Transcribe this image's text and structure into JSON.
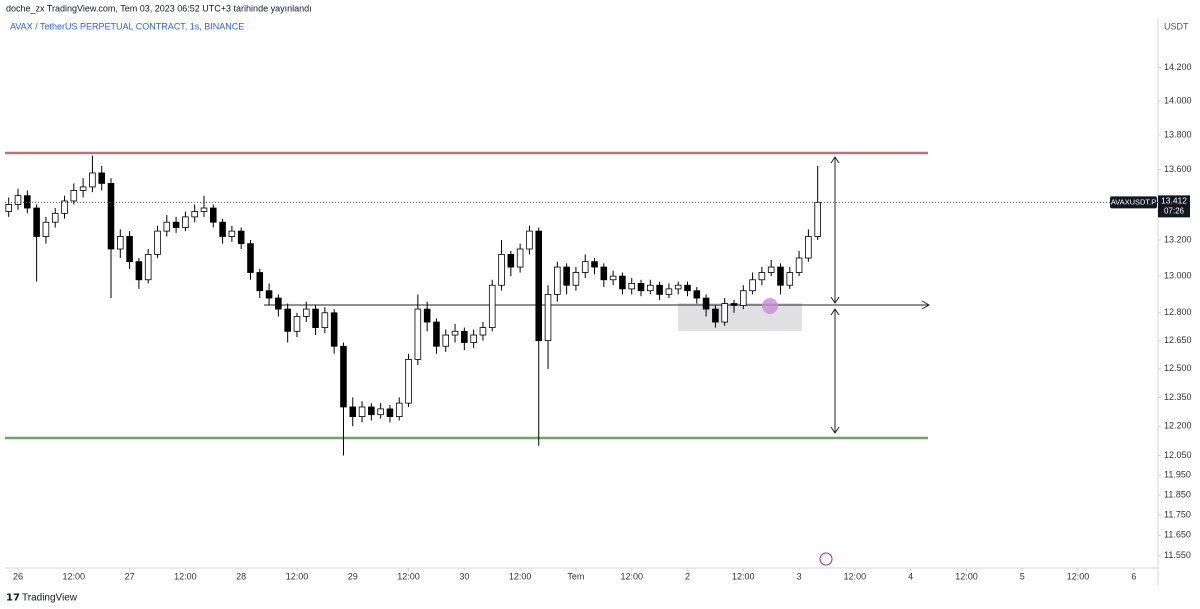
{
  "chart_data": {
    "type": "candlestick",
    "header": "doche_zx TradingView.com, Tem 03, 2023 06:52 UTC+3 tarihinde yayınlandı",
    "title": "AVAX / TetherUS PERPETUAL CONTRACT, 1s, BINANCE",
    "y_axis_label": "USDT",
    "brand": "TradingView",
    "up_color": "#ffffff",
    "down_color": "#000000",
    "border_color": "#000000",
    "log_scale": true,
    "grid": false,
    "xlim": [
      -2.8,
      245.2
    ],
    "xticks": [
      {
        "value": 0,
        "label": "26"
      },
      {
        "value": 12,
        "label": "12:00"
      },
      {
        "value": 24,
        "label": "27"
      },
      {
        "value": 36,
        "label": "12:00"
      },
      {
        "value": 48,
        "label": "28"
      },
      {
        "value": 60,
        "label": "12:00"
      },
      {
        "value": 72,
        "label": "29"
      },
      {
        "value": 84,
        "label": "12:00"
      },
      {
        "value": 96,
        "label": "30"
      },
      {
        "value": 108,
        "label": "12:00"
      },
      {
        "value": 120,
        "label": "Tem"
      },
      {
        "value": 132,
        "label": "12:00"
      },
      {
        "value": 144,
        "label": "2"
      },
      {
        "value": 156,
        "label": "12:00"
      },
      {
        "value": 168,
        "label": "3"
      },
      {
        "value": 180,
        "label": "12:00"
      },
      {
        "value": 192,
        "label": "4"
      },
      {
        "value": 204,
        "label": "12:00"
      },
      {
        "value": 216,
        "label": "5"
      },
      {
        "value": 228,
        "label": "12:00"
      },
      {
        "value": 240,
        "label": "6"
      }
    ],
    "ylim": [
      11.49,
      14.5
    ],
    "yticks": [
      {
        "value": 14.2,
        "label": "14.200"
      },
      {
        "value": 14.0,
        "label": "14.000"
      },
      {
        "value": 13.8,
        "label": "13.800"
      },
      {
        "value": 13.6,
        "label": "13.600"
      },
      {
        "value": 13.2,
        "label": "13.200"
      },
      {
        "value": 13.0,
        "label": "13.000"
      },
      {
        "value": 12.8,
        "label": "12.800"
      },
      {
        "value": 12.65,
        "label": "12.650"
      },
      {
        "value": 12.5,
        "label": "12.500"
      },
      {
        "value": 12.35,
        "label": "12.350"
      },
      {
        "value": 12.2,
        "label": "12.200"
      },
      {
        "value": 12.05,
        "label": "12.050"
      },
      {
        "value": 11.95,
        "label": "11.950"
      },
      {
        "value": 11.85,
        "label": "11.850"
      },
      {
        "value": 11.75,
        "label": "11.750"
      },
      {
        "value": 11.65,
        "label": "11.650"
      },
      {
        "value": 11.55,
        "label": "11.550"
      }
    ],
    "price_tag": {
      "symbol": "AVAXUSDT.P",
      "price": 13.412,
      "countdown": "07:26"
    },
    "x": [
      -2,
      0,
      2,
      4,
      6,
      8,
      10,
      12,
      14,
      16,
      18,
      20,
      22,
      24,
      26,
      28,
      30,
      32,
      34,
      36,
      38,
      40,
      42,
      44,
      46,
      48,
      50,
      52,
      54,
      56,
      58,
      60,
      62,
      64,
      66,
      68,
      70,
      72,
      74,
      76,
      78,
      80,
      82,
      84,
      86,
      88,
      90,
      92,
      94,
      96,
      98,
      100,
      102,
      104,
      106,
      108,
      110,
      112,
      114,
      116,
      118,
      120,
      122,
      124,
      126,
      128,
      130,
      132,
      134,
      136,
      138,
      140,
      142,
      144,
      146,
      148,
      150,
      152,
      154,
      156,
      158,
      160,
      162,
      164,
      166,
      168,
      170,
      172
    ],
    "open": [
      13.36,
      13.4,
      13.45,
      13.38,
      13.22,
      13.3,
      13.35,
      13.42,
      13.48,
      13.5,
      13.58,
      13.52,
      13.15,
      13.22,
      13.08,
      12.98,
      13.12,
      13.25,
      13.3,
      13.27,
      13.33,
      13.36,
      13.38,
      13.3,
      13.22,
      13.25,
      13.18,
      13.02,
      12.92,
      12.88,
      12.82,
      12.7,
      12.78,
      12.82,
      12.72,
      12.8,
      12.62,
      12.3,
      12.25,
      12.3,
      12.26,
      12.29,
      12.25,
      12.32,
      12.55,
      12.82,
      12.75,
      12.62,
      12.68,
      12.7,
      12.64,
      12.68,
      12.72,
      12.95,
      13.12,
      13.05,
      13.15,
      13.25,
      12.65,
      12.9,
      13.05,
      12.95,
      13.02,
      13.08,
      13.05,
      12.98,
      13.0,
      12.93,
      12.96,
      12.92,
      12.95,
      12.9,
      12.93,
      12.95,
      12.92,
      12.88,
      12.82,
      12.75,
      12.85,
      12.84,
      12.92,
      12.98,
      13.02,
      13.05,
      12.95,
      13.02,
      13.1,
      13.22
    ],
    "high": [
      13.44,
      13.49,
      13.48,
      13.4,
      13.33,
      13.38,
      13.45,
      13.52,
      13.55,
      13.68,
      13.62,
      13.55,
      13.26,
      13.25,
      13.1,
      13.15,
      13.28,
      13.34,
      13.33,
      13.36,
      13.4,
      13.45,
      13.4,
      13.32,
      13.28,
      13.27,
      13.2,
      13.04,
      12.96,
      12.9,
      12.85,
      12.8,
      12.86,
      12.84,
      12.83,
      12.82,
      12.64,
      12.35,
      12.33,
      12.32,
      12.32,
      12.31,
      12.35,
      12.58,
      12.9,
      12.86,
      12.77,
      12.71,
      12.74,
      12.72,
      12.71,
      12.75,
      12.98,
      13.2,
      13.14,
      13.18,
      13.28,
      13.27,
      12.95,
      13.08,
      13.07,
      13.05,
      13.12,
      13.1,
      13.07,
      13.03,
      13.02,
      12.99,
      12.98,
      12.98,
      12.97,
      12.96,
      12.97,
      12.97,
      12.94,
      12.9,
      12.84,
      12.88,
      12.87,
      12.95,
      13.02,
      13.05,
      13.09,
      13.07,
      13.05,
      13.14,
      13.26,
      13.62
    ],
    "low": [
      13.33,
      13.37,
      13.35,
      12.97,
      13.18,
      13.27,
      13.32,
      13.4,
      13.44,
      13.47,
      13.48,
      12.88,
      13.1,
      13.04,
      12.93,
      12.96,
      13.1,
      13.22,
      13.24,
      13.25,
      13.3,
      13.33,
      13.27,
      13.18,
      13.19,
      13.15,
      12.98,
      12.88,
      12.84,
      12.78,
      12.64,
      12.67,
      12.75,
      12.68,
      12.69,
      12.58,
      12.05,
      12.2,
      12.22,
      12.23,
      12.24,
      12.22,
      12.23,
      12.3,
      12.52,
      12.7,
      12.58,
      12.59,
      12.64,
      12.6,
      12.61,
      12.65,
      12.7,
      12.92,
      13.0,
      13.02,
      13.12,
      12.1,
      12.5,
      12.86,
      12.9,
      12.92,
      12.99,
      13.01,
      12.94,
      12.95,
      12.9,
      12.9,
      12.89,
      12.9,
      12.87,
      12.88,
      12.9,
      12.89,
      12.85,
      12.78,
      12.72,
      12.73,
      12.8,
      12.82,
      12.9,
      12.95,
      13.0,
      12.9,
      12.93,
      13.0,
      13.08,
      13.2
    ],
    "close": [
      13.4,
      13.45,
      13.38,
      13.22,
      13.3,
      13.35,
      13.42,
      13.48,
      13.5,
      13.58,
      13.52,
      13.15,
      13.22,
      13.08,
      12.98,
      13.12,
      13.25,
      13.3,
      13.27,
      13.33,
      13.36,
      13.38,
      13.3,
      13.22,
      13.25,
      13.18,
      13.02,
      12.92,
      12.88,
      12.82,
      12.7,
      12.78,
      12.82,
      12.72,
      12.8,
      12.62,
      12.3,
      12.25,
      12.3,
      12.26,
      12.29,
      12.25,
      12.32,
      12.55,
      12.82,
      12.75,
      12.62,
      12.68,
      12.7,
      12.64,
      12.68,
      12.72,
      12.95,
      13.12,
      13.05,
      13.15,
      13.25,
      12.65,
      12.9,
      13.05,
      12.95,
      13.02,
      13.08,
      13.05,
      12.98,
      13.0,
      12.93,
      12.96,
      12.92,
      12.95,
      12.9,
      12.93,
      12.95,
      12.92,
      12.88,
      12.82,
      12.75,
      12.85,
      12.84,
      12.92,
      12.98,
      13.02,
      13.05,
      12.95,
      13.02,
      13.1,
      13.22,
      13.412
    ]
  }
}
